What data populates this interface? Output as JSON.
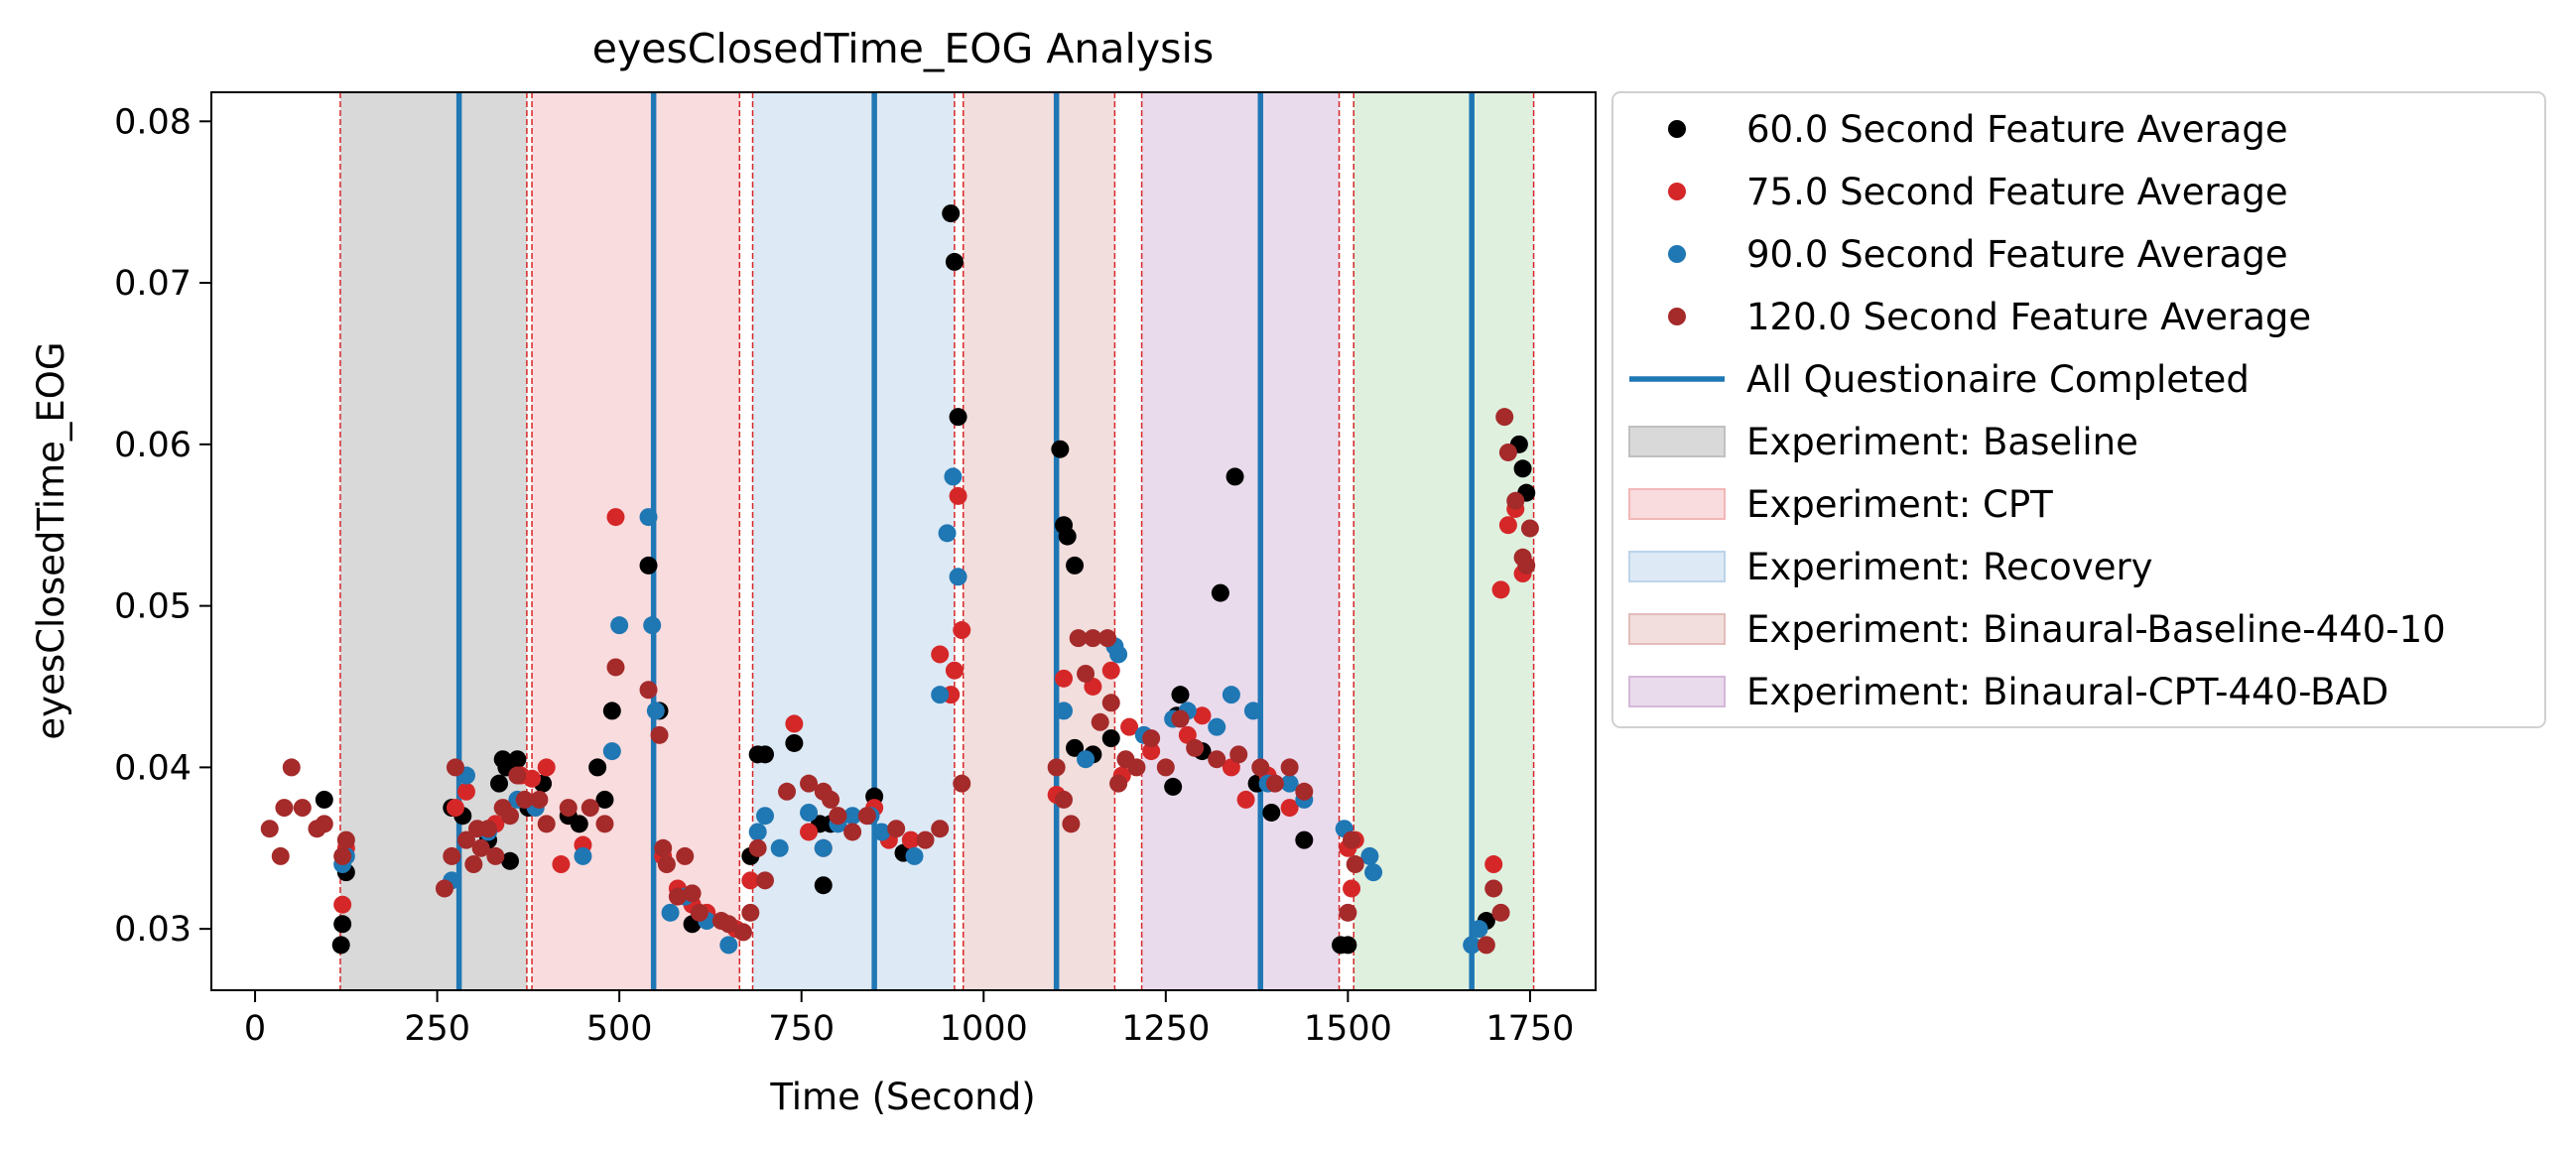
{
  "chart_data": {
    "type": "scatter",
    "title": "eyesClosedTime_EOG Analysis",
    "xlabel": "Time (Second)",
    "ylabel": "eyesClosedTime_EOG",
    "xlim": [
      -60,
      1840
    ],
    "ylim": [
      0.0262,
      0.0818
    ],
    "x_ticks": [
      0,
      250,
      500,
      750,
      1000,
      1250,
      1500,
      1750
    ],
    "y_ticks": [
      0.03,
      0.04,
      0.05,
      0.06,
      0.07,
      0.08
    ],
    "x_tick_labels": [
      "0",
      "250",
      "500",
      "750",
      "1000",
      "1250",
      "1500",
      "1750"
    ],
    "y_tick_labels": [
      "0.03",
      "0.04",
      "0.05",
      "0.06",
      "0.07",
      "0.08"
    ],
    "grid": false,
    "legend_position": "outside-right",
    "phases": [
      {
        "label": "Experiment: Baseline",
        "start": 117,
        "end": 373,
        "color": "#d9d9d9"
      },
      {
        "label": "Experiment: CPT",
        "start": 380,
        "end": 665,
        "color": "#f9dcdd"
      },
      {
        "label": "Experiment: Recovery",
        "start": 683,
        "end": 960,
        "color": "#dde9f4"
      },
      {
        "label": "Experiment: Binaural-Baseline-440-10",
        "start": 972,
        "end": 1180,
        "color": "#f1dedd"
      },
      {
        "label": "Experiment: Binaural-CPT-440-BAD",
        "start": 1217,
        "end": 1488,
        "color": "#e9dbec"
      },
      {
        "label": "",
        "start": 1508,
        "end": 1755,
        "color": "#dff0df"
      }
    ],
    "phase_boundaries": [
      117,
      373,
      380,
      665,
      683,
      960,
      972,
      1180,
      1217,
      1488,
      1508,
      1755
    ],
    "questionnaire_times": [
      280,
      547,
      850,
      1100,
      1380,
      1670
    ],
    "series": [
      {
        "name": "60.0 Second Feature Average",
        "color": "#000000",
        "points": [
          [
            95,
            0.038
          ],
          [
            118,
            0.029
          ],
          [
            120,
            0.0303
          ],
          [
            125,
            0.0335
          ],
          [
            270,
            0.0375
          ],
          [
            285,
            0.037
          ],
          [
            320,
            0.0355
          ],
          [
            335,
            0.039
          ],
          [
            340,
            0.0405
          ],
          [
            345,
            0.04
          ],
          [
            350,
            0.0342
          ],
          [
            360,
            0.0405
          ],
          [
            375,
            0.0375
          ],
          [
            395,
            0.039
          ],
          [
            430,
            0.037
          ],
          [
            445,
            0.0365
          ],
          [
            470,
            0.04
          ],
          [
            480,
            0.038
          ],
          [
            490,
            0.0435
          ],
          [
            540,
            0.0525
          ],
          [
            555,
            0.0435
          ],
          [
            600,
            0.0303
          ],
          [
            680,
            0.0345
          ],
          [
            690,
            0.0408
          ],
          [
            700,
            0.0408
          ],
          [
            740,
            0.0415
          ],
          [
            775,
            0.0365
          ],
          [
            780,
            0.0327
          ],
          [
            790,
            0.0365
          ],
          [
            850,
            0.0382
          ],
          [
            890,
            0.0347
          ],
          [
            955,
            0.0743
          ],
          [
            960,
            0.0713
          ],
          [
            965,
            0.0617
          ],
          [
            1105,
            0.0597
          ],
          [
            1110,
            0.055
          ],
          [
            1115,
            0.0543
          ],
          [
            1125,
            0.0525
          ],
          [
            1125,
            0.0412
          ],
          [
            1150,
            0.0408
          ],
          [
            1175,
            0.0418
          ],
          [
            1260,
            0.0388
          ],
          [
            1265,
            0.0432
          ],
          [
            1270,
            0.0445
          ],
          [
            1300,
            0.041
          ],
          [
            1325,
            0.0508
          ],
          [
            1345,
            0.058
          ],
          [
            1375,
            0.039
          ],
          [
            1395,
            0.0372
          ],
          [
            1440,
            0.0355
          ],
          [
            1490,
            0.029
          ],
          [
            1500,
            0.029
          ],
          [
            1690,
            0.0305
          ],
          [
            1735,
            0.06
          ],
          [
            1740,
            0.0585
          ],
          [
            1745,
            0.057
          ]
        ]
      },
      {
        "name": "75.0 Second Feature Average",
        "color": "#d62728",
        "points": [
          [
            120,
            0.0315
          ],
          [
            125,
            0.035
          ],
          [
            275,
            0.0375
          ],
          [
            290,
            0.0385
          ],
          [
            330,
            0.0365
          ],
          [
            365,
            0.0395
          ],
          [
            380,
            0.0393
          ],
          [
            400,
            0.04
          ],
          [
            420,
            0.034
          ],
          [
            450,
            0.0352
          ],
          [
            495,
            0.0555
          ],
          [
            560,
            0.0345
          ],
          [
            580,
            0.0325
          ],
          [
            600,
            0.0315
          ],
          [
            620,
            0.031
          ],
          [
            660,
            0.03
          ],
          [
            680,
            0.033
          ],
          [
            740,
            0.0427
          ],
          [
            760,
            0.036
          ],
          [
            780,
            0.035
          ],
          [
            800,
            0.037
          ],
          [
            850,
            0.0375
          ],
          [
            870,
            0.0355
          ],
          [
            900,
            0.0355
          ],
          [
            940,
            0.047
          ],
          [
            955,
            0.0445
          ],
          [
            960,
            0.046
          ],
          [
            965,
            0.0568
          ],
          [
            970,
            0.0485
          ],
          [
            1100,
            0.0383
          ],
          [
            1110,
            0.0455
          ],
          [
            1150,
            0.045
          ],
          [
            1175,
            0.046
          ],
          [
            1190,
            0.0395
          ],
          [
            1200,
            0.0425
          ],
          [
            1230,
            0.041
          ],
          [
            1280,
            0.042
          ],
          [
            1300,
            0.0432
          ],
          [
            1340,
            0.04
          ],
          [
            1360,
            0.038
          ],
          [
            1390,
            0.0395
          ],
          [
            1420,
            0.0375
          ],
          [
            1500,
            0.035
          ],
          [
            1505,
            0.0325
          ],
          [
            1510,
            0.0355
          ],
          [
            1700,
            0.034
          ],
          [
            1710,
            0.051
          ],
          [
            1720,
            0.055
          ],
          [
            1730,
            0.056
          ],
          [
            1740,
            0.052
          ]
        ]
      },
      {
        "name": "90.0 Second Feature Average",
        "color": "#1f77b4",
        "points": [
          [
            120,
            0.034
          ],
          [
            125,
            0.0345
          ],
          [
            270,
            0.033
          ],
          [
            290,
            0.0395
          ],
          [
            320,
            0.036
          ],
          [
            360,
            0.038
          ],
          [
            385,
            0.0375
          ],
          [
            450,
            0.0345
          ],
          [
            490,
            0.041
          ],
          [
            500,
            0.0488
          ],
          [
            540,
            0.0555
          ],
          [
            545,
            0.0488
          ],
          [
            550,
            0.0435
          ],
          [
            570,
            0.031
          ],
          [
            590,
            0.032
          ],
          [
            620,
            0.0305
          ],
          [
            650,
            0.029
          ],
          [
            690,
            0.036
          ],
          [
            700,
            0.037
          ],
          [
            720,
            0.035
          ],
          [
            760,
            0.0372
          ],
          [
            780,
            0.035
          ],
          [
            800,
            0.0365
          ],
          [
            820,
            0.037
          ],
          [
            845,
            0.037
          ],
          [
            860,
            0.036
          ],
          [
            905,
            0.0345
          ],
          [
            940,
            0.0445
          ],
          [
            950,
            0.0545
          ],
          [
            958,
            0.058
          ],
          [
            965,
            0.0518
          ],
          [
            1110,
            0.0435
          ],
          [
            1140,
            0.0405
          ],
          [
            1180,
            0.0475
          ],
          [
            1185,
            0.047
          ],
          [
            1220,
            0.042
          ],
          [
            1260,
            0.043
          ],
          [
            1280,
            0.0435
          ],
          [
            1320,
            0.0425
          ],
          [
            1340,
            0.0445
          ],
          [
            1370,
            0.0435
          ],
          [
            1390,
            0.039
          ],
          [
            1420,
            0.039
          ],
          [
            1440,
            0.038
          ],
          [
            1495,
            0.0362
          ],
          [
            1530,
            0.0345
          ],
          [
            1535,
            0.0335
          ],
          [
            1670,
            0.029
          ],
          [
            1680,
            0.03
          ]
        ]
      },
      {
        "name": "120.0 Second Feature Average",
        "color": "#a52a2a",
        "points": [
          [
            20,
            0.0362
          ],
          [
            35,
            0.0345
          ],
          [
            40,
            0.0375
          ],
          [
            50,
            0.04
          ],
          [
            65,
            0.0375
          ],
          [
            85,
            0.0362
          ],
          [
            95,
            0.0365
          ],
          [
            120,
            0.0345
          ],
          [
            125,
            0.0355
          ],
          [
            260,
            0.0325
          ],
          [
            270,
            0.0345
          ],
          [
            275,
            0.04
          ],
          [
            290,
            0.0355
          ],
          [
            300,
            0.034
          ],
          [
            305,
            0.0362
          ],
          [
            310,
            0.035
          ],
          [
            320,
            0.0362
          ],
          [
            330,
            0.0345
          ],
          [
            340,
            0.0375
          ],
          [
            350,
            0.037
          ],
          [
            360,
            0.0395
          ],
          [
            370,
            0.038
          ],
          [
            390,
            0.038
          ],
          [
            400,
            0.0365
          ],
          [
            430,
            0.0375
          ],
          [
            460,
            0.0375
          ],
          [
            480,
            0.0365
          ],
          [
            495,
            0.0462
          ],
          [
            540,
            0.0448
          ],
          [
            555,
            0.042
          ],
          [
            560,
            0.035
          ],
          [
            565,
            0.034
          ],
          [
            580,
            0.032
          ],
          [
            590,
            0.0345
          ],
          [
            600,
            0.0322
          ],
          [
            610,
            0.031
          ],
          [
            640,
            0.0305
          ],
          [
            650,
            0.0303
          ],
          [
            670,
            0.0298
          ],
          [
            680,
            0.031
          ],
          [
            690,
            0.035
          ],
          [
            700,
            0.033
          ],
          [
            730,
            0.0385
          ],
          [
            760,
            0.039
          ],
          [
            780,
            0.0385
          ],
          [
            790,
            0.038
          ],
          [
            800,
            0.037
          ],
          [
            820,
            0.036
          ],
          [
            840,
            0.037
          ],
          [
            880,
            0.0362
          ],
          [
            920,
            0.0355
          ],
          [
            940,
            0.0362
          ],
          [
            970,
            0.039
          ],
          [
            1100,
            0.04
          ],
          [
            1110,
            0.038
          ],
          [
            1120,
            0.0365
          ],
          [
            1130,
            0.048
          ],
          [
            1140,
            0.0458
          ],
          [
            1150,
            0.048
          ],
          [
            1160,
            0.0428
          ],
          [
            1170,
            0.048
          ],
          [
            1175,
            0.044
          ],
          [
            1185,
            0.039
          ],
          [
            1195,
            0.0405
          ],
          [
            1210,
            0.04
          ],
          [
            1230,
            0.0418
          ],
          [
            1250,
            0.04
          ],
          [
            1270,
            0.043
          ],
          [
            1290,
            0.0412
          ],
          [
            1320,
            0.0405
          ],
          [
            1350,
            0.0408
          ],
          [
            1380,
            0.04
          ],
          [
            1400,
            0.039
          ],
          [
            1420,
            0.04
          ],
          [
            1440,
            0.0385
          ],
          [
            1500,
            0.031
          ],
          [
            1505,
            0.0355
          ],
          [
            1510,
            0.034
          ],
          [
            1690,
            0.029
          ],
          [
            1700,
            0.0325
          ],
          [
            1710,
            0.031
          ],
          [
            1715,
            0.0617
          ],
          [
            1720,
            0.0595
          ],
          [
            1730,
            0.0565
          ],
          [
            1740,
            0.053
          ],
          [
            1745,
            0.0525
          ],
          [
            1750,
            0.0548
          ]
        ]
      }
    ],
    "legend": [
      {
        "label": "60.0 Second Feature Average",
        "kind": "marker",
        "color": "#000000"
      },
      {
        "label": "75.0 Second Feature Average",
        "kind": "marker",
        "color": "#d62728"
      },
      {
        "label": "90.0 Second Feature Average",
        "kind": "marker",
        "color": "#1f77b4"
      },
      {
        "label": "120.0 Second Feature Average",
        "kind": "marker",
        "color": "#a52a2a"
      },
      {
        "label": "All Questionaire Completed",
        "kind": "line",
        "color": "#1f77b4"
      },
      {
        "label": "Experiment: Baseline",
        "kind": "patch",
        "color": "#d9d9d9",
        "edge": "#c0c0c0"
      },
      {
        "label": "Experiment: CPT",
        "kind": "patch",
        "color": "#f9dcdd",
        "edge": "#f2b7b8"
      },
      {
        "label": "Experiment: Recovery",
        "kind": "patch",
        "color": "#dde9f4",
        "edge": "#bcd4ea"
      },
      {
        "label": "Experiment: Binaural-Baseline-440-10",
        "kind": "patch",
        "color": "#f1dedd",
        "edge": "#e3bdbb"
      },
      {
        "label": "Experiment: Binaural-CPT-440-BAD",
        "kind": "patch",
        "color": "#e9dbec",
        "edge": "#d4b8d9"
      }
    ]
  }
}
